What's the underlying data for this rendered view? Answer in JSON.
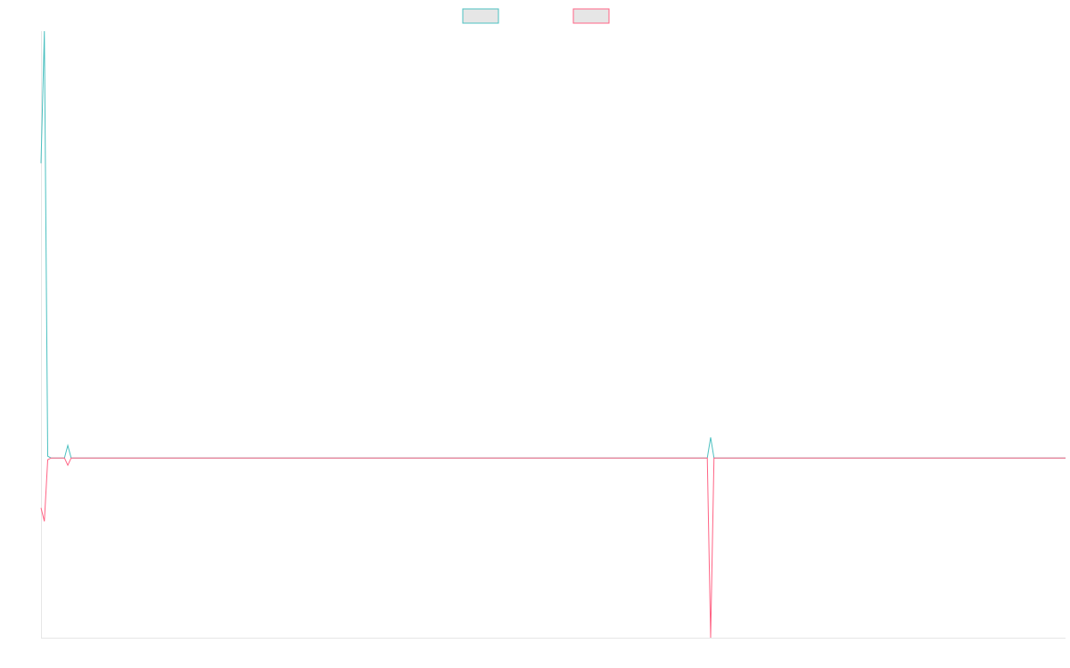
{
  "chart_data": {
    "type": "line",
    "x": [
      0,
      1,
      2,
      3,
      4,
      5,
      6,
      7,
      8,
      9,
      10,
      199,
      200,
      201,
      306
    ],
    "xlim": [
      0,
      306
    ],
    "ylim": [
      -4,
      9.5
    ],
    "legend": "top",
    "series": [
      {
        "color": "#4bc0c0",
        "values": [
          6.56,
          9.5,
          0.04,
          0,
          0,
          0,
          0,
          0,
          0.28,
          0,
          0,
          0,
          0.46,
          0,
          0
        ]
      },
      {
        "color": "#ff6384",
        "values": [
          -1.11,
          -1.41,
          -0.04,
          0,
          0,
          0,
          0,
          0,
          -0.16,
          0,
          0,
          0,
          -4,
          0,
          0
        ]
      }
    ]
  }
}
